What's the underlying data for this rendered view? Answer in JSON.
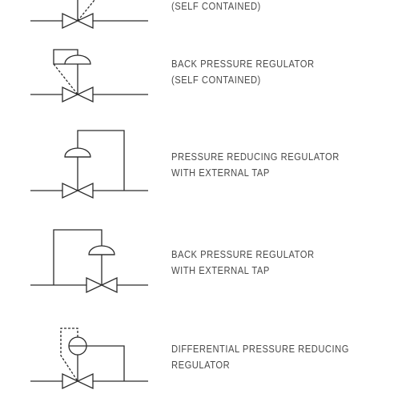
{
  "legend": [
    {
      "id": "top-partial",
      "symbol": "self-contained-regulator",
      "lines": [
        "(SELF CONTAINED)"
      ]
    },
    {
      "id": "back-pressure-self",
      "symbol": "back-pressure-self-contained",
      "lines": [
        "BACK PRESSURE REGULATOR",
        "(SELF CONTAINED)"
      ]
    },
    {
      "id": "pressure-reducing-ext",
      "symbol": "pressure-reducing-external-tap",
      "lines": [
        "PRESSURE REDUCING REGULATOR",
        "WITH EXTERNAL TAP"
      ]
    },
    {
      "id": "back-pressure-ext",
      "symbol": "back-pressure-external-tap",
      "lines": [
        "BACK PRESSURE REGULATOR",
        "WITH EXTERNAL TAP"
      ]
    },
    {
      "id": "differential",
      "symbol": "differential-pressure-reducing",
      "lines": [
        "DIFFERENTIAL PRESSURE REDUCING",
        "REGULATOR"
      ]
    }
  ],
  "colors": {
    "stroke": "#2b2b2b",
    "text": "#4a4a4a",
    "background": "#ffffff"
  }
}
